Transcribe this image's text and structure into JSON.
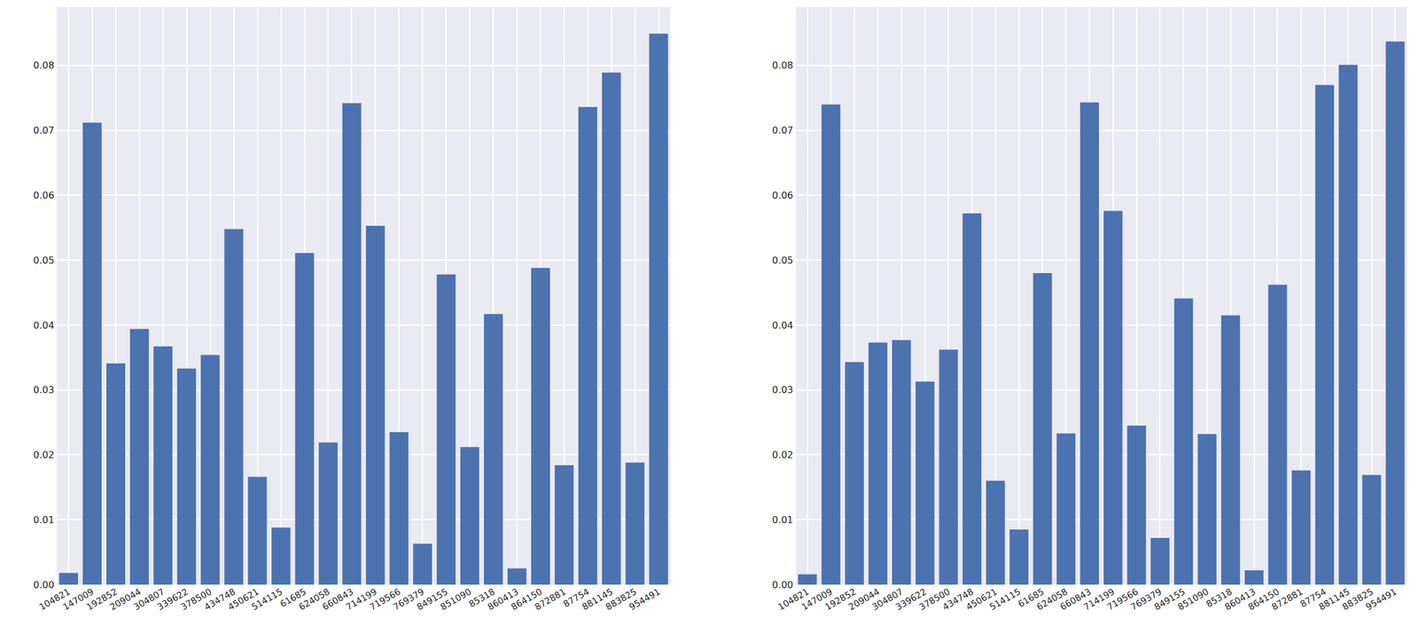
{
  "chart_data": [
    {
      "type": "bar",
      "categories": [
        "104821",
        "147009",
        "192852",
        "209044",
        "304807",
        "339622",
        "378500",
        "434748",
        "450621",
        "514115",
        "61685",
        "624058",
        "660843",
        "714199",
        "719566",
        "769379",
        "849155",
        "851090",
        "85318",
        "860413",
        "864150",
        "872881",
        "87754",
        "881145",
        "883825",
        "954491"
      ],
      "values": [
        0.0018,
        0.0712,
        0.0341,
        0.0394,
        0.0367,
        0.0333,
        0.0354,
        0.0548,
        0.0166,
        0.0088,
        0.0511,
        0.0219,
        0.0742,
        0.0553,
        0.0235,
        0.0063,
        0.0478,
        0.0212,
        0.0417,
        0.0025,
        0.0488,
        0.0184,
        0.0736,
        0.0789,
        0.0188,
        0.0849
      ],
      "color": "#4c72b0",
      "ylim": [
        0,
        0.089
      ],
      "yticks": [
        {
          "value": 0,
          "label": "0.00"
        },
        {
          "value": 0.01,
          "label": "0.01"
        },
        {
          "value": 0.02,
          "label": "0.02"
        },
        {
          "value": 0.03,
          "label": "0.03"
        },
        {
          "value": 0.04,
          "label": "0.04"
        },
        {
          "value": 0.05,
          "label": "0.05"
        },
        {
          "value": 0.06,
          "label": "0.06"
        },
        {
          "value": 0.07,
          "label": "0.07"
        },
        {
          "value": 0.08,
          "label": "0.08"
        }
      ],
      "grid": true
    },
    {
      "type": "bar",
      "categories": [
        "104821",
        "147009",
        "192852",
        "209044",
        "304807",
        "339622",
        "378500",
        "434748",
        "450621",
        "514115",
        "61685",
        "624058",
        "660843",
        "714199",
        "719566",
        "769379",
        "849155",
        "851090",
        "85318",
        "860413",
        "864150",
        "872881",
        "87754",
        "881145",
        "883825",
        "954491"
      ],
      "values": [
        0.0016,
        0.074,
        0.0343,
        0.0373,
        0.0377,
        0.0313,
        0.0362,
        0.0572,
        0.016,
        0.0085,
        0.048,
        0.0233,
        0.0743,
        0.0576,
        0.0245,
        0.0072,
        0.0441,
        0.0232,
        0.0415,
        0.0022,
        0.0462,
        0.0176,
        0.077,
        0.0801,
        0.0169,
        0.0837
      ],
      "color": "#4c72b0",
      "ylim": [
        0,
        0.089
      ],
      "yticks": [
        {
          "value": 0,
          "label": "0.00"
        },
        {
          "value": 0.01,
          "label": "0.01"
        },
        {
          "value": 0.02,
          "label": "0.02"
        },
        {
          "value": 0.03,
          "label": "0.03"
        },
        {
          "value": 0.04,
          "label": "0.04"
        },
        {
          "value": 0.05,
          "label": "0.05"
        },
        {
          "value": 0.06,
          "label": "0.06"
        },
        {
          "value": 0.07,
          "label": "0.07"
        },
        {
          "value": 0.08,
          "label": "0.08"
        }
      ],
      "grid": true
    }
  ]
}
